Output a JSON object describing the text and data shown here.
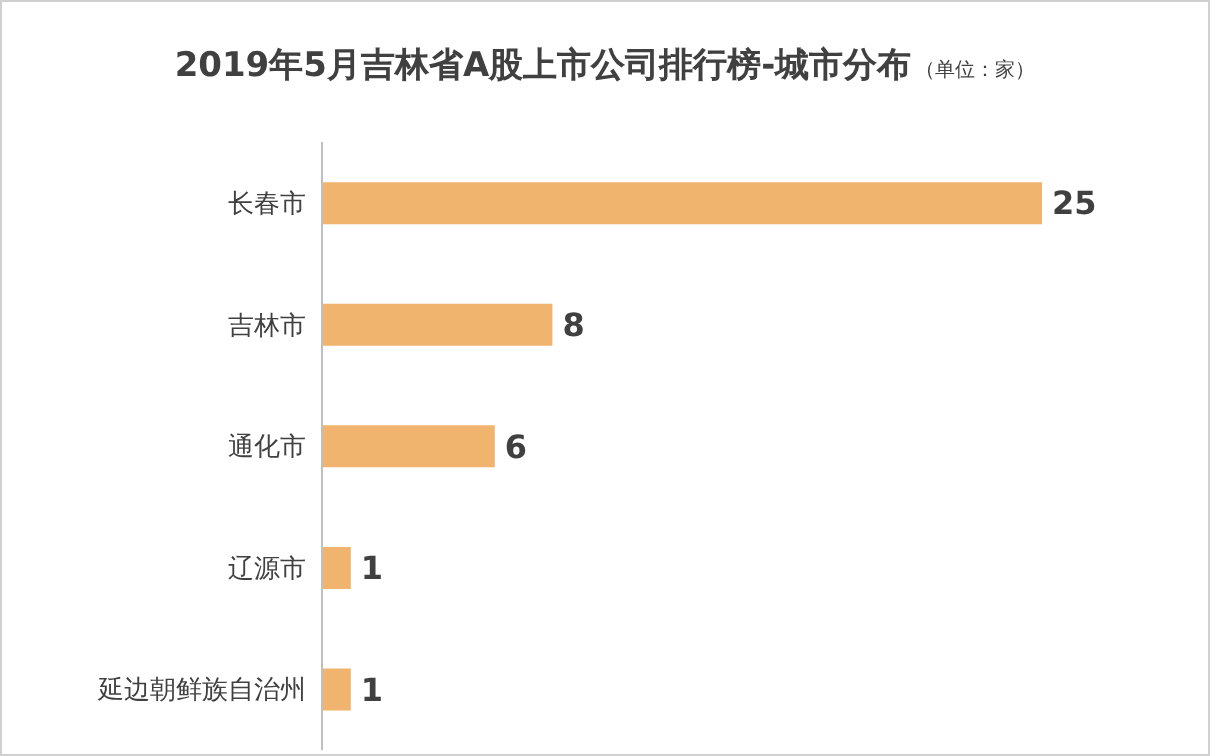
{
  "chart_data": {
    "type": "bar",
    "orientation": "horizontal",
    "title": "2019年5月吉林省A股上市公司排行榜-城市分布",
    "subtitle": "（单位：家）",
    "categories": [
      "长春市",
      "吉林市",
      "通化市",
      "辽源市",
      "延边朝鲜族自治州"
    ],
    "values": [
      25,
      8,
      6,
      1,
      1
    ],
    "color": "#f0b46e",
    "data_labels": true,
    "tick_labels": "y"
  }
}
